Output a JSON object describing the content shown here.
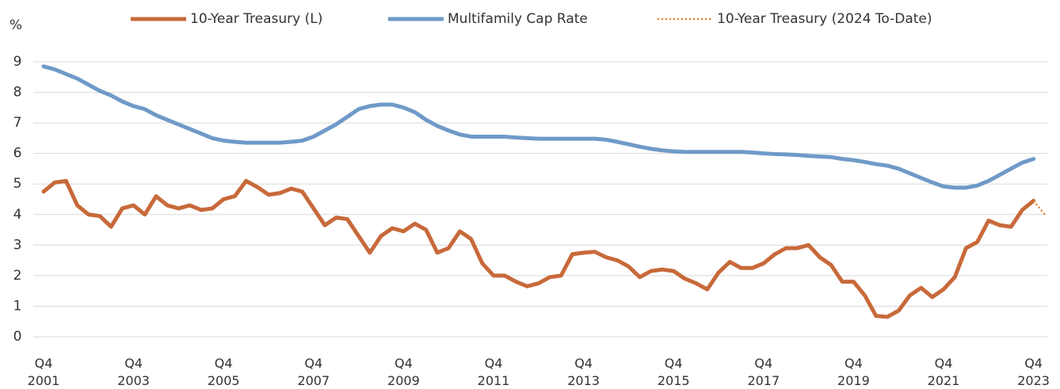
{
  "chart_data": {
    "type": "line",
    "y_unit_label": "%",
    "categories": [
      "Q4\n2001",
      null,
      null,
      null,
      null,
      null,
      null,
      null,
      "Q4\n2003",
      null,
      null,
      null,
      null,
      null,
      null,
      null,
      "Q4\n2005",
      null,
      null,
      null,
      null,
      null,
      null,
      null,
      "Q4\n2007",
      null,
      null,
      null,
      null,
      null,
      null,
      null,
      "Q4\n2009",
      null,
      null,
      null,
      null,
      null,
      null,
      null,
      "Q4\n2011",
      null,
      null,
      null,
      null,
      null,
      null,
      null,
      "Q4\n2013",
      null,
      null,
      null,
      null,
      null,
      null,
      null,
      "Q4\n2015",
      null,
      null,
      null,
      null,
      null,
      null,
      null,
      "Q4\n2017",
      null,
      null,
      null,
      null,
      null,
      null,
      null,
      "Q4\n2019",
      null,
      null,
      null,
      null,
      null,
      null,
      null,
      "Q4\n2021",
      null,
      null,
      null,
      null,
      null,
      null,
      null,
      "Q4\n2023",
      null
    ],
    "series": [
      {
        "name": "10-Year Treasury (L)",
        "color": "#c8693a",
        "line_style": "solid",
        "values": [
          4.75,
          5.05,
          5.1,
          4.3,
          4.0,
          3.95,
          3.6,
          4.2,
          4.3,
          4.0,
          4.6,
          4.3,
          4.2,
          4.3,
          4.15,
          4.2,
          4.5,
          4.6,
          5.1,
          4.9,
          4.65,
          4.7,
          4.85,
          4.75,
          4.2,
          3.65,
          3.9,
          3.85,
          3.3,
          2.75,
          3.3,
          3.55,
          3.45,
          3.7,
          3.5,
          2.75,
          2.9,
          3.45,
          3.2,
          2.4,
          2.0,
          2.0,
          1.8,
          1.65,
          1.75,
          1.95,
          2.0,
          2.7,
          2.75,
          2.78,
          2.6,
          2.5,
          2.3,
          1.95,
          2.15,
          2.2,
          2.15,
          1.9,
          1.75,
          1.55,
          2.1,
          2.45,
          2.25,
          2.25,
          2.4,
          2.7,
          2.9,
          2.9,
          3.0,
          2.6,
          2.35,
          1.8,
          1.8,
          1.35,
          0.68,
          0.65,
          0.85,
          1.35,
          1.6,
          1.3,
          1.55,
          1.95,
          2.9,
          3.1,
          3.8,
          3.65,
          3.6,
          4.15,
          4.45,
          null
        ]
      },
      {
        "name": "Multifamily Cap Rate",
        "color": "#6f9ac8",
        "line_style": "solid",
        "values": [
          8.85,
          8.75,
          8.6,
          8.45,
          8.25,
          8.05,
          7.9,
          7.7,
          7.55,
          7.45,
          7.25,
          7.1,
          6.95,
          6.8,
          6.65,
          6.5,
          6.42,
          6.38,
          6.35,
          6.35,
          6.35,
          6.35,
          6.38,
          6.42,
          6.55,
          6.75,
          6.95,
          7.2,
          7.45,
          7.55,
          7.6,
          7.6,
          7.5,
          7.35,
          7.1,
          6.9,
          6.75,
          6.62,
          6.55,
          6.55,
          6.55,
          6.55,
          6.52,
          6.5,
          6.48,
          6.48,
          6.48,
          6.48,
          6.48,
          6.48,
          6.45,
          6.38,
          6.3,
          6.22,
          6.15,
          6.1,
          6.07,
          6.05,
          6.05,
          6.05,
          6.05,
          6.05,
          6.05,
          6.03,
          6.0,
          5.98,
          5.97,
          5.95,
          5.92,
          5.9,
          5.88,
          5.82,
          5.78,
          5.72,
          5.65,
          5.6,
          5.5,
          5.35,
          5.2,
          5.05,
          4.92,
          4.88,
          4.88,
          4.95,
          5.1,
          5.3,
          5.5,
          5.7,
          5.82,
          null
        ]
      },
      {
        "name": "10-Year Treasury (2024 To-Date)",
        "color": "#e8822e",
        "line_style": "dotted",
        "values": [
          null,
          null,
          null,
          null,
          null,
          null,
          null,
          null,
          null,
          null,
          null,
          null,
          null,
          null,
          null,
          null,
          null,
          null,
          null,
          null,
          null,
          null,
          null,
          null,
          null,
          null,
          null,
          null,
          null,
          null,
          null,
          null,
          null,
          null,
          null,
          null,
          null,
          null,
          null,
          null,
          null,
          null,
          null,
          null,
          null,
          null,
          null,
          null,
          null,
          null,
          null,
          null,
          null,
          null,
          null,
          null,
          null,
          null,
          null,
          null,
          null,
          null,
          null,
          null,
          null,
          null,
          null,
          null,
          null,
          null,
          null,
          null,
          null,
          null,
          null,
          null,
          null,
          null,
          null,
          null,
          null,
          null,
          null,
          null,
          null,
          null,
          null,
          null,
          4.45,
          4.0
        ]
      }
    ],
    "ylim": [
      0,
      9
    ],
    "yticks": [
      0,
      1,
      2,
      3,
      4,
      5,
      6,
      7,
      8,
      9
    ],
    "grid": true
  }
}
